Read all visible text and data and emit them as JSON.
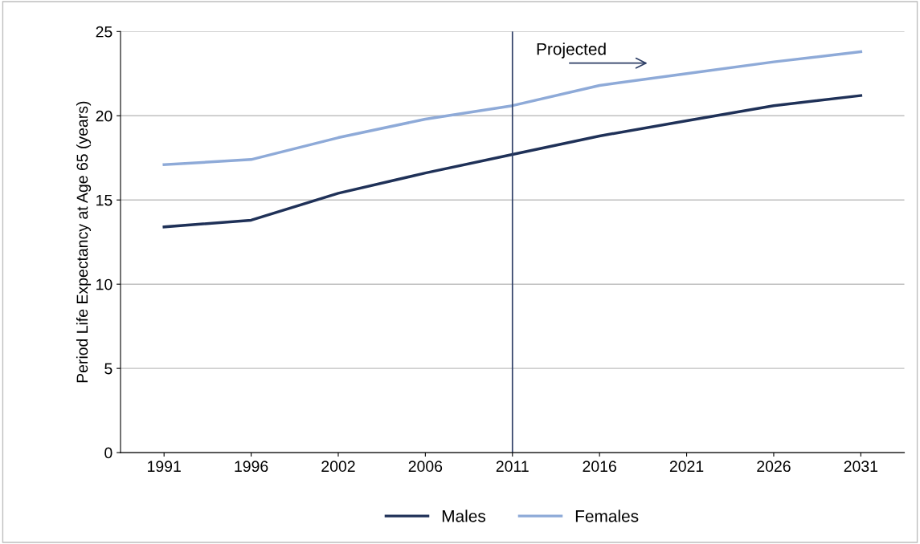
{
  "chart_data": {
    "type": "line",
    "ylabel": "Period Life Expectancy at Age 65 (years)",
    "categories": [
      "1991",
      "1996",
      "2002",
      "2006",
      "2011",
      "2016",
      "2021",
      "2026",
      "2031"
    ],
    "series": [
      {
        "name": "Males",
        "color": "#1f3158",
        "values": [
          13.4,
          13.8,
          15.4,
          16.6,
          17.7,
          18.8,
          19.7,
          20.6,
          21.2
        ]
      },
      {
        "name": "Females",
        "color": "#8eaad8",
        "values": [
          17.1,
          17.4,
          18.7,
          19.8,
          20.6,
          21.8,
          22.5,
          23.2,
          23.8
        ]
      }
    ],
    "ylim": [
      0,
      25
    ],
    "yticks": [
      0,
      5,
      10,
      15,
      20,
      25
    ],
    "grid": "y",
    "legend": "bottom",
    "marker": "none",
    "line_style": "solid",
    "ref_lines": [
      {
        "axis": "x",
        "value": "2011",
        "color": "#2e3f66"
      }
    ],
    "annotations": [
      "Projected"
    ]
  }
}
